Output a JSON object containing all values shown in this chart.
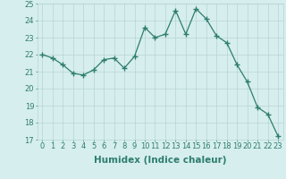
{
  "x": [
    0,
    1,
    2,
    3,
    4,
    5,
    6,
    7,
    8,
    9,
    10,
    11,
    12,
    13,
    14,
    15,
    16,
    17,
    18,
    19,
    20,
    21,
    22,
    23
  ],
  "y": [
    22.0,
    21.8,
    21.4,
    20.9,
    20.8,
    21.1,
    21.7,
    21.8,
    21.2,
    21.9,
    23.6,
    23.0,
    23.2,
    24.6,
    23.2,
    24.7,
    24.1,
    23.1,
    22.7,
    21.4,
    20.4,
    18.9,
    18.5,
    17.2
  ],
  "line_color": "#2e7d6e",
  "marker": "+",
  "marker_size": 4,
  "bg_color": "#d6eeee",
  "grid_color": "#b8d4d4",
  "xlabel": "Humidex (Indice chaleur)",
  "ylim": [
    17,
    25
  ],
  "xlim": [
    -0.5,
    23.5
  ],
  "yticks": [
    17,
    18,
    19,
    20,
    21,
    22,
    23,
    24,
    25
  ],
  "xticks": [
    0,
    1,
    2,
    3,
    4,
    5,
    6,
    7,
    8,
    9,
    10,
    11,
    12,
    13,
    14,
    15,
    16,
    17,
    18,
    19,
    20,
    21,
    22,
    23
  ],
  "tick_fontsize": 6,
  "xlabel_fontsize": 7.5,
  "linewidth": 0.9
}
